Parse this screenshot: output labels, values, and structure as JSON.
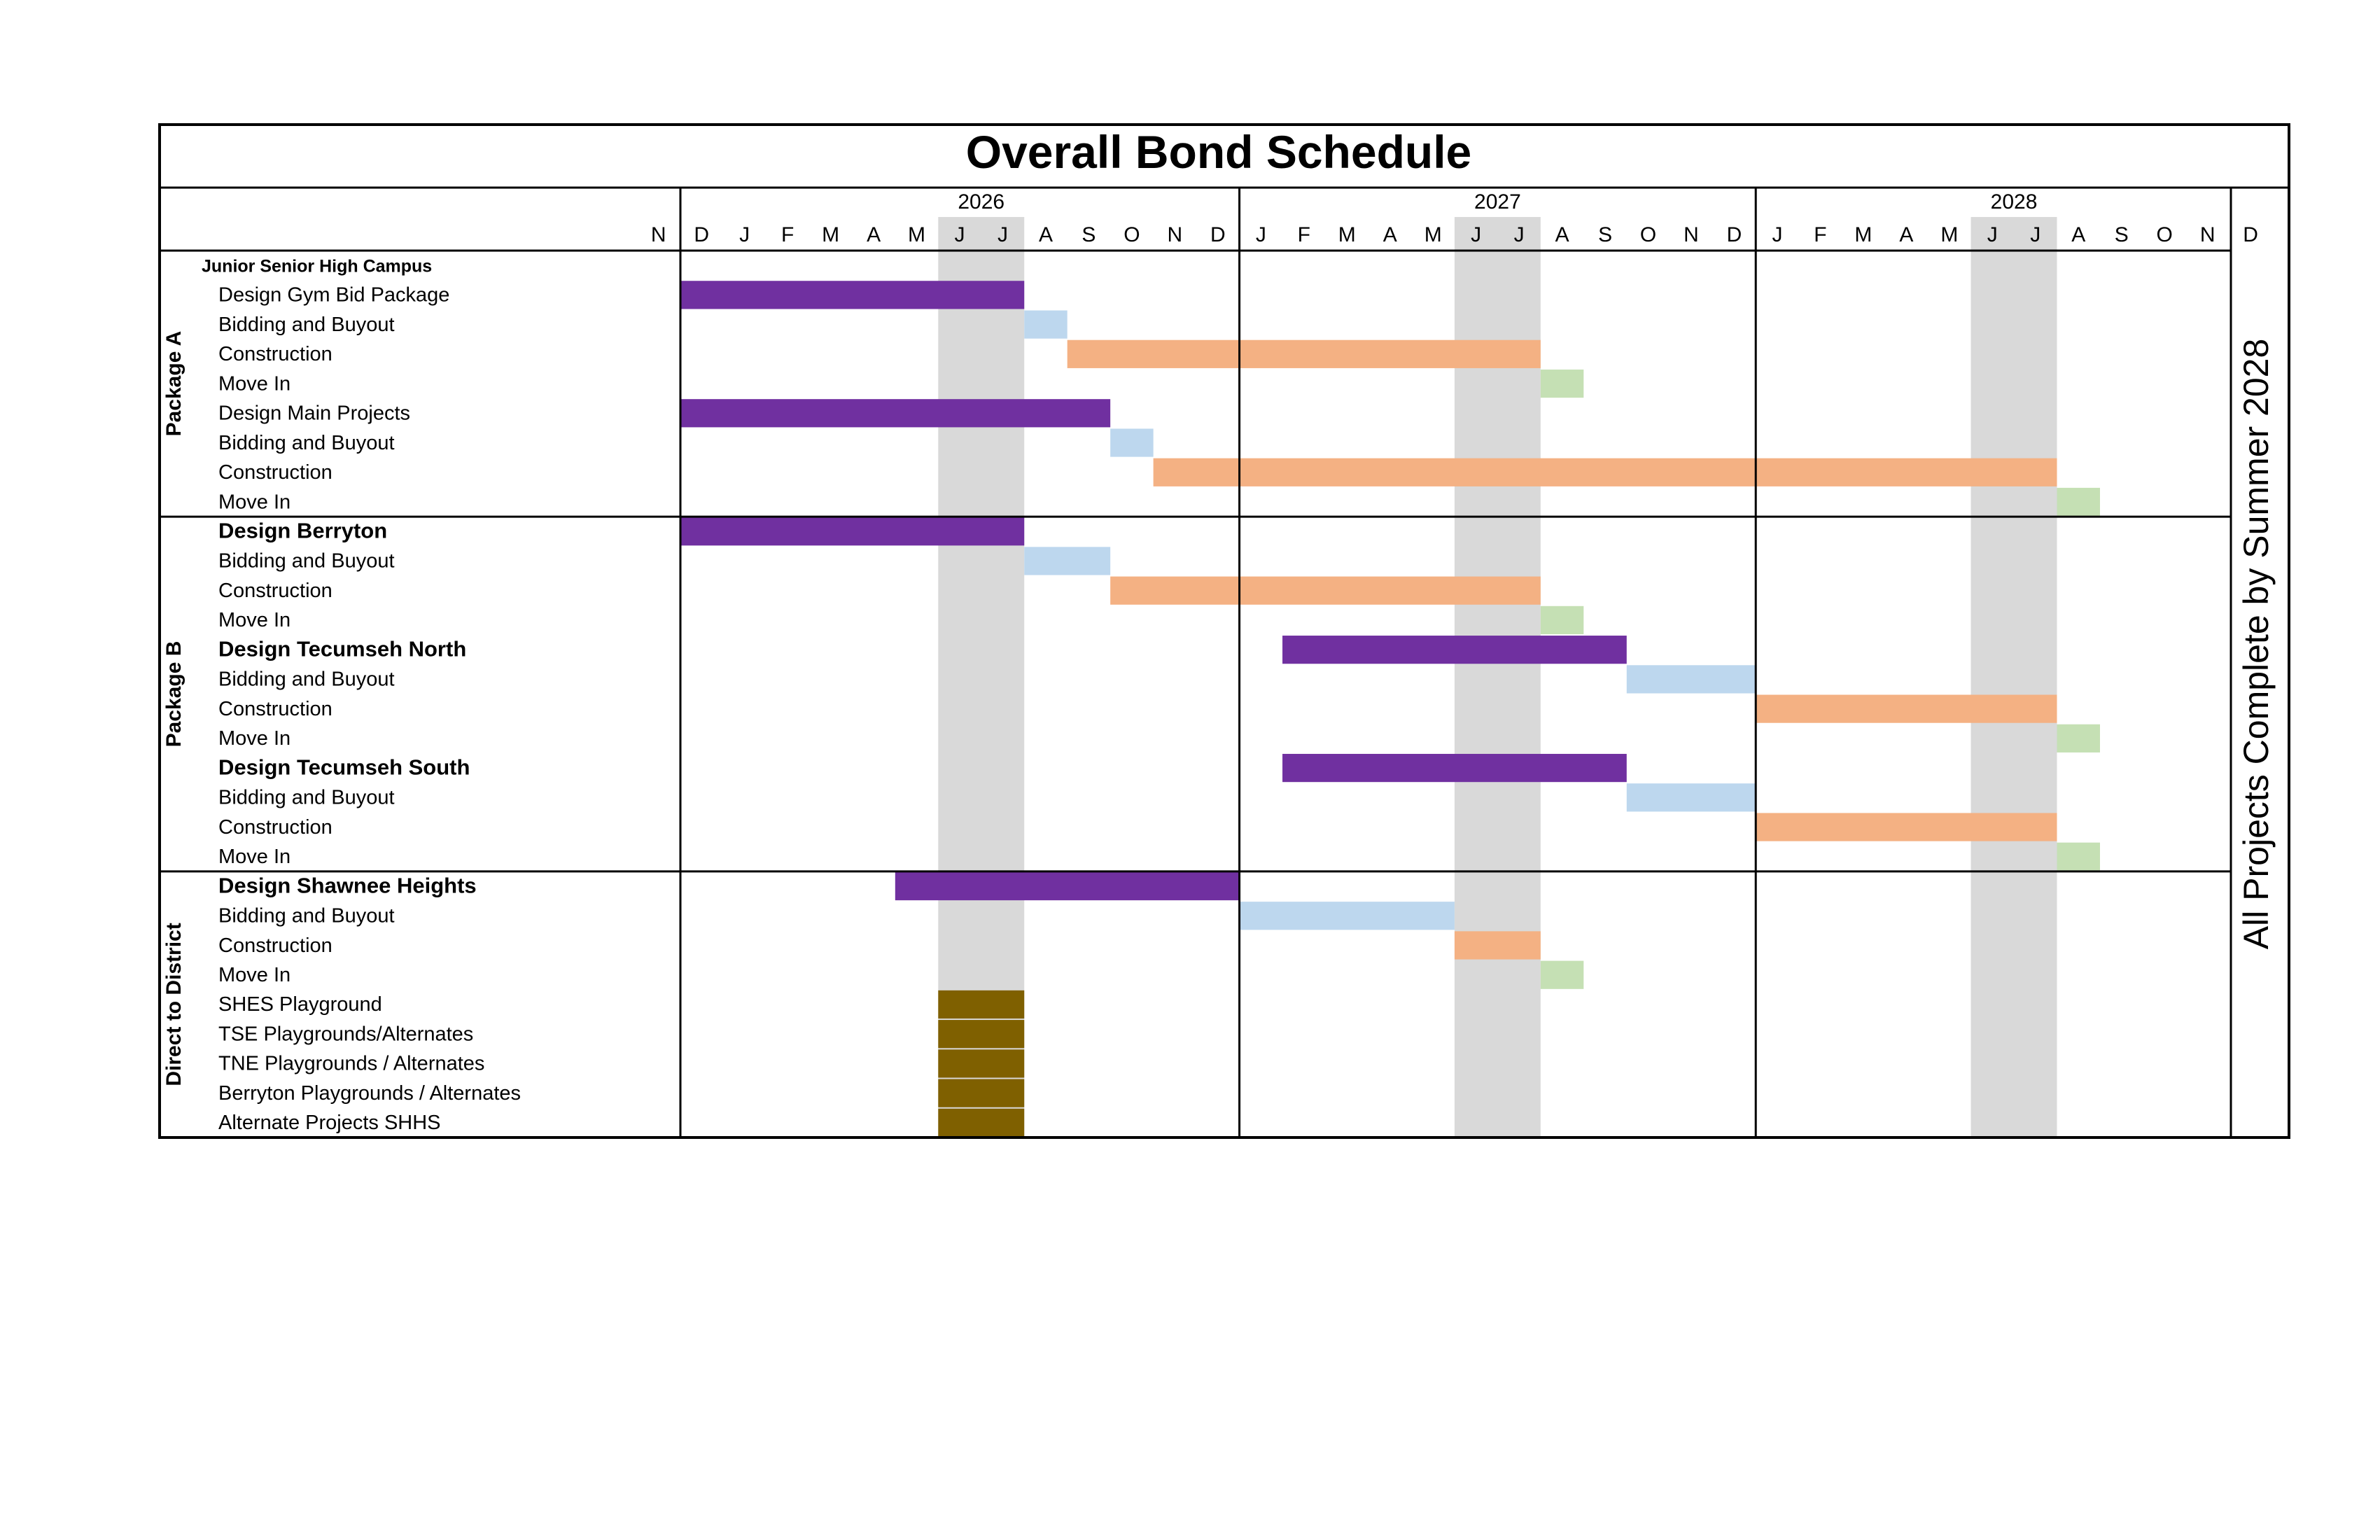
{
  "chart_data": {
    "type": "gantt",
    "title": "Overall Bond Schedule",
    "side_note": "All Projects Complete by Summer 2028",
    "timeline": {
      "start": "2025-11",
      "end": "2028-12",
      "years": [
        "2026",
        "2027",
        "2028"
      ],
      "month_labels": [
        "N",
        "D",
        "J",
        "F",
        "M",
        "A",
        "M",
        "J",
        "J",
        "A",
        "S",
        "O",
        "N",
        "D",
        "J",
        "F",
        "M",
        "A",
        "M",
        "J",
        "J",
        "A",
        "S",
        "O",
        "N",
        "D",
        "J",
        "F",
        "M",
        "A",
        "M",
        "J",
        "J",
        "A",
        "S",
        "O",
        "N",
        "D"
      ],
      "shaded_summer_months": [
        [
          "2026-06",
          "2026-07"
        ],
        [
          "2027-06",
          "2027-07"
        ],
        [
          "2028-06",
          "2028-07"
        ]
      ]
    },
    "legend_colors": {
      "Design": "#7030a0",
      "Bidding and Buyout": "#bdd7ee",
      "Construction": "#f4b183",
      "Move In": "#c5e0b4",
      "Playgrounds / Alternates": "#7f6000",
      "Summer shading": "#d9d9d9"
    },
    "groups": [
      {
        "name": "Package A",
        "rows": [
          {
            "label": "Junior Senior High Campus",
            "style": "campus"
          },
          {
            "label": "Design Gym Bid Package",
            "kind": "design",
            "start": "2025-12",
            "end": "2026-07"
          },
          {
            "label": "Bidding and Buyout",
            "kind": "bid",
            "start": "2026-08",
            "end": "2026-08"
          },
          {
            "label": "Construction",
            "kind": "construction",
            "start": "2026-09",
            "end": "2027-07"
          },
          {
            "label": "Move In",
            "kind": "movein",
            "start": "2027-08",
            "end": "2027-08"
          },
          {
            "label": "Design Main Projects",
            "kind": "design",
            "start": "2025-12",
            "end": "2026-09"
          },
          {
            "label": "Bidding and Buyout",
            "kind": "bid",
            "start": "2026-10",
            "end": "2026-10"
          },
          {
            "label": "Construction",
            "kind": "construction",
            "start": "2026-11",
            "end": "2028-07"
          },
          {
            "label": "Move In",
            "kind": "movein",
            "start": "2028-08",
            "end": "2028-08"
          }
        ]
      },
      {
        "name": "Package B",
        "rows": [
          {
            "label": "Design Berryton",
            "style": "bold",
            "kind": "design",
            "start": "2025-12",
            "end": "2026-07"
          },
          {
            "label": "Bidding and Buyout",
            "kind": "bid",
            "start": "2026-08",
            "end": "2026-09"
          },
          {
            "label": "Construction",
            "kind": "construction",
            "start": "2026-10",
            "end": "2027-07"
          },
          {
            "label": "Move In",
            "kind": "movein",
            "start": "2027-08",
            "end": "2027-08"
          },
          {
            "label": "Design Tecumseh North",
            "style": "bold",
            "kind": "design",
            "start": "2027-02",
            "end": "2027-09"
          },
          {
            "label": "Bidding and Buyout",
            "kind": "bid",
            "start": "2027-10",
            "end": "2027-12"
          },
          {
            "label": "Construction",
            "kind": "construction",
            "start": "2028-01",
            "end": "2028-07"
          },
          {
            "label": "Move In",
            "kind": "movein",
            "start": "2028-08",
            "end": "2028-08"
          },
          {
            "label": "Design Tecumseh South",
            "style": "bold",
            "kind": "design",
            "start": "2027-02",
            "end": "2027-09"
          },
          {
            "label": "Bidding and Buyout",
            "kind": "bid",
            "start": "2027-10",
            "end": "2027-12"
          },
          {
            "label": "Construction",
            "kind": "construction",
            "start": "2028-01",
            "end": "2028-07"
          },
          {
            "label": "Move In",
            "kind": "movein",
            "start": "2028-08",
            "end": "2028-08"
          }
        ]
      },
      {
        "name": "Direct to District",
        "rows": [
          {
            "label": "Design Shawnee Heights",
            "style": "bold",
            "kind": "design",
            "start": "2026-05",
            "end": "2026-12"
          },
          {
            "label": "Bidding and Buyout",
            "kind": "bid",
            "start": "2027-01",
            "end": "2027-05"
          },
          {
            "label": "Construction",
            "kind": "construction",
            "start": "2027-06",
            "end": "2027-07"
          },
          {
            "label": "Move In",
            "kind": "movein",
            "start": "2027-08",
            "end": "2027-08"
          },
          {
            "label": "SHES Playground",
            "kind": "playground",
            "start": "2026-06",
            "end": "2026-07"
          },
          {
            "label": "TSE Playgrounds/Alternates",
            "kind": "playground",
            "start": "2026-06",
            "end": "2026-07"
          },
          {
            "label": "TNE Playgrounds / Alternates",
            "kind": "playground",
            "start": "2026-06",
            "end": "2026-07"
          },
          {
            "label": "Berryton Playgrounds / Alternates",
            "kind": "playground",
            "start": "2026-06",
            "end": "2026-07"
          },
          {
            "label": "Alternate Projects SHHS",
            "kind": "playground",
            "start": "2026-06",
            "end": "2026-07"
          }
        ]
      }
    ]
  }
}
